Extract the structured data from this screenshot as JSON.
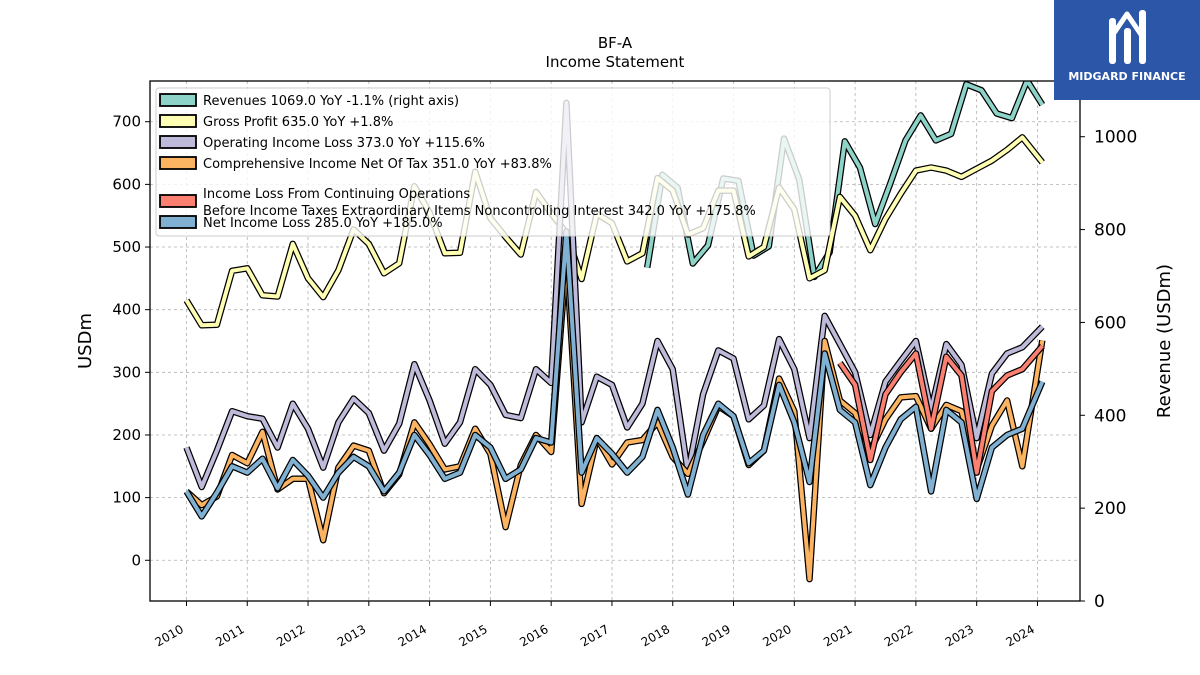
{
  "logo": {
    "brand": "MIDGARD FINANCE",
    "icon": "midgard-finance-logo-icon",
    "color": "#2c56a8"
  },
  "chart_data": {
    "type": "line",
    "title": "BF-A",
    "subtitle": "Income Statement",
    "ylabel": "USDm",
    "y2label": "Revenue (USDm)",
    "ylim": [
      -65,
      765
    ],
    "y2lim": [
      0,
      1120
    ],
    "yticks": [
      0,
      100,
      200,
      300,
      400,
      500,
      600,
      700
    ],
    "y2ticks": [
      0,
      200,
      400,
      600,
      800,
      1000
    ],
    "xlim": [
      2009.4,
      2024.7
    ],
    "xticks": [
      2010,
      2011,
      2012,
      2013,
      2014,
      2015,
      2016,
      2017,
      2018,
      2019,
      2020,
      2021,
      2022,
      2023,
      2024
    ],
    "grid": true,
    "legend_position": "top-left",
    "series": [
      {
        "name": "Revenues",
        "legend": "Revenues  1069.0 YoY -1.1% (right axis)",
        "color": "#8dd3c7",
        "axis": "right",
        "points": [
          [
            2017.58,
            718
          ],
          [
            2017.83,
            918
          ],
          [
            2018.08,
            890
          ],
          [
            2018.33,
            727
          ],
          [
            2018.58,
            766
          ],
          [
            2018.83,
            910
          ],
          [
            2019.08,
            905
          ],
          [
            2019.33,
            744
          ],
          [
            2019.58,
            764
          ],
          [
            2019.83,
            996
          ],
          [
            2020.08,
            908
          ],
          [
            2020.33,
            698
          ],
          [
            2020.58,
            751
          ],
          [
            2020.83,
            990
          ],
          [
            2021.08,
            933
          ],
          [
            2021.33,
            812
          ],
          [
            2021.58,
            900
          ],
          [
            2021.83,
            992
          ],
          [
            2022.08,
            1046
          ],
          [
            2022.33,
            992
          ],
          [
            2022.58,
            1006
          ],
          [
            2022.83,
            1113
          ],
          [
            2023.08,
            1100
          ],
          [
            2023.33,
            1050
          ],
          [
            2023.58,
            1040
          ],
          [
            2023.83,
            1121
          ],
          [
            2024.08,
            1069
          ]
        ]
      },
      {
        "name": "Gross Profit",
        "legend": "Gross Profit  635.0 YoY +1.8%",
        "color": "#ffffb3",
        "axis": "left",
        "points": [
          [
            2010.0,
            415
          ],
          [
            2010.25,
            375
          ],
          [
            2010.5,
            376
          ],
          [
            2010.75,
            462
          ],
          [
            2011.0,
            466
          ],
          [
            2011.25,
            423
          ],
          [
            2011.5,
            421
          ],
          [
            2011.75,
            505
          ],
          [
            2012.0,
            450
          ],
          [
            2012.25,
            420
          ],
          [
            2012.5,
            463
          ],
          [
            2012.75,
            528
          ],
          [
            2013.0,
            505
          ],
          [
            2013.25,
            458
          ],
          [
            2013.5,
            474
          ],
          [
            2013.75,
            597
          ],
          [
            2014.0,
            555
          ],
          [
            2014.25,
            490
          ],
          [
            2014.5,
            491
          ],
          [
            2014.75,
            620
          ],
          [
            2015.0,
            546
          ],
          [
            2015.25,
            516
          ],
          [
            2015.5,
            488
          ],
          [
            2015.75,
            588
          ],
          [
            2016.0,
            554
          ],
          [
            2016.25,
            522
          ],
          [
            2016.5,
            449
          ],
          [
            2016.75,
            553
          ],
          [
            2017.0,
            538
          ],
          [
            2017.25,
            477
          ],
          [
            2017.5,
            490
          ],
          [
            2017.75,
            610
          ],
          [
            2018.0,
            590
          ],
          [
            2018.25,
            520
          ],
          [
            2018.5,
            530
          ],
          [
            2018.75,
            590
          ],
          [
            2019.0,
            590
          ],
          [
            2019.25,
            485
          ],
          [
            2019.5,
            500
          ],
          [
            2019.75,
            595
          ],
          [
            2020.0,
            560
          ],
          [
            2020.25,
            450
          ],
          [
            2020.5,
            463
          ],
          [
            2020.75,
            580
          ],
          [
            2021.0,
            550
          ],
          [
            2021.25,
            495
          ],
          [
            2021.5,
            545
          ],
          [
            2021.75,
            585
          ],
          [
            2022.0,
            622
          ],
          [
            2022.25,
            627
          ],
          [
            2022.5,
            622
          ],
          [
            2022.75,
            612
          ],
          [
            2023.0,
            625
          ],
          [
            2023.25,
            638
          ],
          [
            2023.5,
            655
          ],
          [
            2023.75,
            675
          ],
          [
            2024.08,
            635
          ]
        ]
      },
      {
        "name": "Operating Income Loss",
        "legend": "Operating Income Loss  373.0 YoY +115.6%",
        "color": "#bebada",
        "axis": "left",
        "points": [
          [
            2010.0,
            180
          ],
          [
            2010.25,
            117
          ],
          [
            2010.5,
            175
          ],
          [
            2010.75,
            238
          ],
          [
            2011.0,
            230
          ],
          [
            2011.25,
            226
          ],
          [
            2011.5,
            180
          ],
          [
            2011.75,
            250
          ],
          [
            2012.0,
            210
          ],
          [
            2012.25,
            148
          ],
          [
            2012.5,
            220
          ],
          [
            2012.75,
            258
          ],
          [
            2013.0,
            235
          ],
          [
            2013.25,
            175
          ],
          [
            2013.5,
            218
          ],
          [
            2013.75,
            313
          ],
          [
            2014.0,
            255
          ],
          [
            2014.25,
            186
          ],
          [
            2014.5,
            220
          ],
          [
            2014.75,
            305
          ],
          [
            2015.0,
            280
          ],
          [
            2015.25,
            232
          ],
          [
            2015.5,
            227
          ],
          [
            2015.75,
            305
          ],
          [
            2016.0,
            283
          ],
          [
            2016.25,
            730
          ],
          [
            2016.5,
            220
          ],
          [
            2016.75,
            293
          ],
          [
            2017.0,
            280
          ],
          [
            2017.25,
            212
          ],
          [
            2017.5,
            250
          ],
          [
            2017.75,
            350
          ],
          [
            2018.0,
            305
          ],
          [
            2018.25,
            140
          ],
          [
            2018.5,
            265
          ],
          [
            2018.75,
            335
          ],
          [
            2019.0,
            322
          ],
          [
            2019.25,
            225
          ],
          [
            2019.5,
            247
          ],
          [
            2019.75,
            353
          ],
          [
            2020.0,
            305
          ],
          [
            2020.25,
            195
          ],
          [
            2020.5,
            390
          ],
          [
            2020.75,
            345
          ],
          [
            2021.0,
            300
          ],
          [
            2021.25,
            200
          ],
          [
            2021.5,
            285
          ],
          [
            2021.75,
            318
          ],
          [
            2022.0,
            350
          ],
          [
            2022.25,
            240
          ],
          [
            2022.5,
            345
          ],
          [
            2022.75,
            312
          ],
          [
            2023.0,
            195
          ],
          [
            2023.25,
            298
          ],
          [
            2023.5,
            330
          ],
          [
            2023.75,
            340
          ],
          [
            2024.08,
            373
          ]
        ]
      },
      {
        "name": "Comprehensive Income Net Of Tax",
        "legend": "Comprehensive Income Net Of Tax  351.0 YoY +83.8%",
        "color": "#fdb462",
        "axis": "left",
        "points": [
          [
            2010.0,
            110
          ],
          [
            2010.25,
            88
          ],
          [
            2010.5,
            102
          ],
          [
            2010.75,
            168
          ],
          [
            2011.0,
            155
          ],
          [
            2011.25,
            205
          ],
          [
            2011.5,
            113
          ],
          [
            2011.75,
            130
          ],
          [
            2012.0,
            130
          ],
          [
            2012.25,
            32
          ],
          [
            2012.5,
            148
          ],
          [
            2012.75,
            183
          ],
          [
            2013.0,
            175
          ],
          [
            2013.25,
            107
          ],
          [
            2013.5,
            137
          ],
          [
            2013.75,
            220
          ],
          [
            2014.0,
            185
          ],
          [
            2014.25,
            145
          ],
          [
            2014.5,
            150
          ],
          [
            2014.75,
            210
          ],
          [
            2015.0,
            170
          ],
          [
            2015.25,
            53
          ],
          [
            2015.5,
            152
          ],
          [
            2015.75,
            200
          ],
          [
            2016.0,
            173
          ],
          [
            2016.25,
            483
          ],
          [
            2016.5,
            90
          ],
          [
            2016.75,
            195
          ],
          [
            2017.0,
            153
          ],
          [
            2017.25,
            188
          ],
          [
            2017.5,
            192
          ],
          [
            2017.75,
            220
          ],
          [
            2018.0,
            165
          ],
          [
            2018.25,
            138
          ],
          [
            2018.5,
            190
          ],
          [
            2018.75,
            246
          ],
          [
            2019.0,
            230
          ],
          [
            2019.25,
            152
          ],
          [
            2019.5,
            175
          ],
          [
            2019.75,
            290
          ],
          [
            2020.0,
            238
          ],
          [
            2020.25,
            -30
          ],
          [
            2020.5,
            350
          ],
          [
            2020.75,
            255
          ],
          [
            2021.0,
            235
          ],
          [
            2021.25,
            175
          ],
          [
            2021.5,
            225
          ],
          [
            2021.75,
            260
          ],
          [
            2022.0,
            262
          ],
          [
            2022.25,
            210
          ],
          [
            2022.5,
            248
          ],
          [
            2022.75,
            238
          ],
          [
            2023.0,
            145
          ],
          [
            2023.25,
            215
          ],
          [
            2023.5,
            255
          ],
          [
            2023.75,
            150
          ],
          [
            2024.08,
            351
          ]
        ]
      },
      {
        "name": "Income Loss From Continuing Operations Before Income Taxes Extraordinary Items Noncontrolling Interest",
        "legend": "Income Loss From Continuing Operations",
        "legend2": "Before Income Taxes Extraordinary Items Noncontrolling Interest  342.0 YoY +175.8%",
        "color": "#fb8072",
        "axis": "left",
        "points": [
          [
            2020.75,
            315
          ],
          [
            2021.0,
            280
          ],
          [
            2021.25,
            160
          ],
          [
            2021.5,
            265
          ],
          [
            2021.75,
            300
          ],
          [
            2022.0,
            330
          ],
          [
            2022.25,
            210
          ],
          [
            2022.5,
            325
          ],
          [
            2022.75,
            295
          ],
          [
            2023.0,
            140
          ],
          [
            2023.25,
            270
          ],
          [
            2023.5,
            295
          ],
          [
            2023.75,
            305
          ],
          [
            2024.08,
            342
          ]
        ]
      },
      {
        "name": "Net Income Loss",
        "legend": "Net Income Loss  285.0 YoY +185.0%",
        "color": "#80b1d3",
        "axis": "left",
        "points": [
          [
            2010.0,
            110
          ],
          [
            2010.25,
            70
          ],
          [
            2010.5,
            108
          ],
          [
            2010.75,
            150
          ],
          [
            2011.0,
            140
          ],
          [
            2011.25,
            162
          ],
          [
            2011.5,
            115
          ],
          [
            2011.75,
            160
          ],
          [
            2012.0,
            135
          ],
          [
            2012.25,
            100
          ],
          [
            2012.5,
            140
          ],
          [
            2012.75,
            165
          ],
          [
            2013.0,
            150
          ],
          [
            2013.25,
            110
          ],
          [
            2013.5,
            140
          ],
          [
            2013.75,
            200
          ],
          [
            2014.0,
            168
          ],
          [
            2014.25,
            130
          ],
          [
            2014.5,
            140
          ],
          [
            2014.75,
            200
          ],
          [
            2015.0,
            180
          ],
          [
            2015.25,
            130
          ],
          [
            2015.5,
            145
          ],
          [
            2015.75,
            195
          ],
          [
            2016.0,
            188
          ],
          [
            2016.25,
            525
          ],
          [
            2016.5,
            140
          ],
          [
            2016.75,
            195
          ],
          [
            2017.0,
            170
          ],
          [
            2017.25,
            140
          ],
          [
            2017.5,
            165
          ],
          [
            2017.75,
            240
          ],
          [
            2018.0,
            180
          ],
          [
            2018.25,
            105
          ],
          [
            2018.5,
            200
          ],
          [
            2018.75,
            250
          ],
          [
            2019.0,
            230
          ],
          [
            2019.25,
            155
          ],
          [
            2019.5,
            175
          ],
          [
            2019.75,
            280
          ],
          [
            2020.0,
            220
          ],
          [
            2020.25,
            125
          ],
          [
            2020.5,
            330
          ],
          [
            2020.75,
            240
          ],
          [
            2021.0,
            220
          ],
          [
            2021.25,
            120
          ],
          [
            2021.5,
            180
          ],
          [
            2021.75,
            225
          ],
          [
            2022.0,
            245
          ],
          [
            2022.25,
            110
          ],
          [
            2022.5,
            240
          ],
          [
            2022.75,
            220
          ],
          [
            2023.0,
            98
          ],
          [
            2023.25,
            180
          ],
          [
            2023.5,
            200
          ],
          [
            2023.75,
            210
          ],
          [
            2024.08,
            285
          ]
        ]
      }
    ]
  }
}
